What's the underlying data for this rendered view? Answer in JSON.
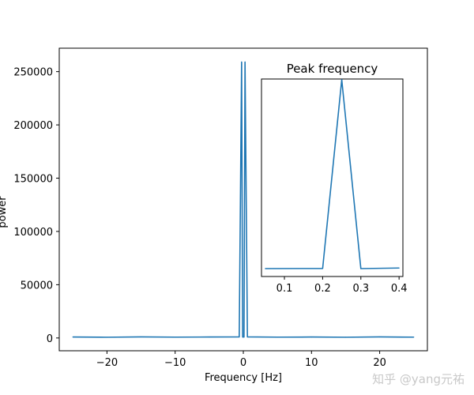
{
  "chart_data": [
    {
      "type": "line",
      "title": "",
      "xlabel": "Frequency [Hz]",
      "ylabel": "power",
      "xlim": [
        -27,
        27
      ],
      "ylim": [
        -12000,
        272000
      ],
      "xticks": [
        -20,
        -10,
        0,
        10,
        20
      ],
      "xtick_labels": [
        "−20",
        "−10",
        "0",
        "10",
        "20"
      ],
      "yticks": [
        0,
        50000,
        100000,
        150000,
        200000,
        250000
      ],
      "ytick_labels": [
        "0",
        "50000",
        "100000",
        "150000",
        "200000",
        "250000"
      ],
      "grid": false,
      "legend": "none",
      "color": "#1f77b4",
      "series": [
        {
          "x": [
            -25,
            -20,
            -15,
            -10,
            -5,
            -0.6,
            -0.25,
            -0.1,
            0.1,
            0.25,
            0.6,
            5,
            10,
            15,
            20,
            25
          ],
          "values": [
            900,
            700,
            1000,
            800,
            900,
            1000,
            259000,
            900,
            900,
            259000,
            1000,
            800,
            900,
            700,
            1000,
            800
          ]
        }
      ]
    },
    {
      "type": "line",
      "title": "Peak frequency",
      "xlabel": "",
      "ylabel": "",
      "xlim": [
        0.04,
        0.41
      ],
      "ylim": [
        -10000,
        260000
      ],
      "xticks": [
        0.1,
        0.2,
        0.3,
        0.4
      ],
      "xtick_labels": [
        "0.1",
        "0.2",
        "0.3",
        "0.4"
      ],
      "yticks": [],
      "grid": false,
      "legend": "none",
      "color": "#1f77b4",
      "series": [
        {
          "x": [
            0.05,
            0.2,
            0.25,
            0.3,
            0.4
          ],
          "values": [
            800,
            1000,
            259000,
            800,
            1600
          ]
        }
      ]
    }
  ],
  "watermark": "知乎 @yang元祐"
}
